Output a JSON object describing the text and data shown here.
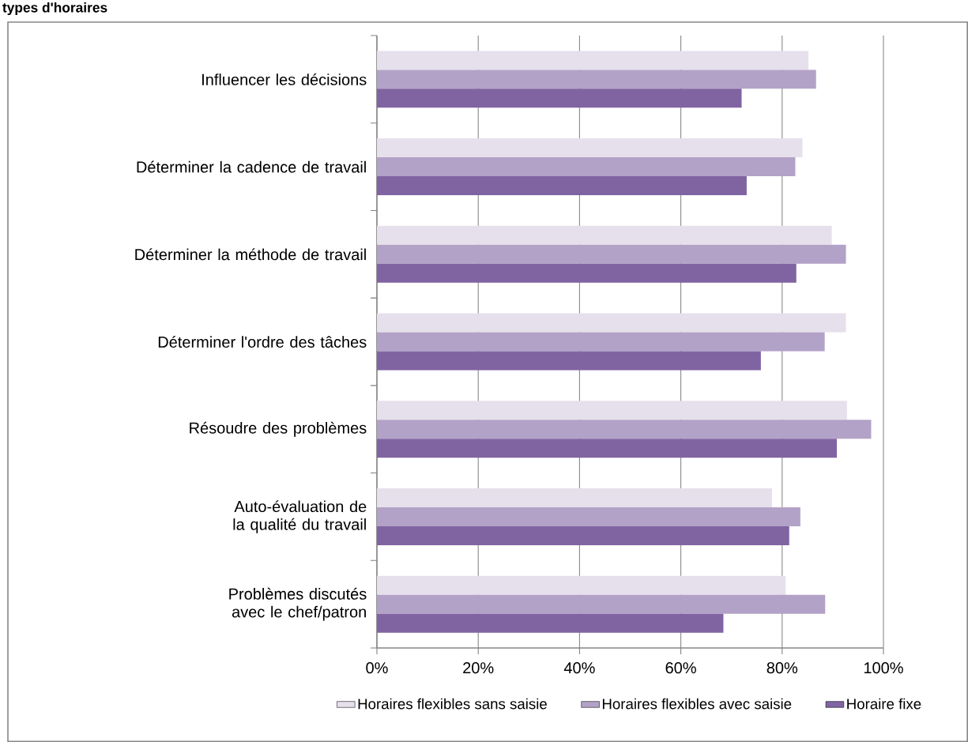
{
  "chart_data": {
    "type": "bar",
    "orientation": "horizontal",
    "title": "types d'horaires",
    "categories": [
      "Influencer les décisions",
      "Déterminer la cadence de travail",
      "Déterminer la méthode de travail",
      "Déterminer l'ordre des tâches",
      "Résoudre des problèmes",
      "Auto-évaluation de la qualité du travail",
      "Problèmes discutés avec le chef/patron"
    ],
    "series": [
      {
        "name": "Horaires flexibles sans saisie",
        "color": "#e6e0ec",
        "values": [
          85.2,
          84.0,
          89.8,
          92.6,
          92.8,
          78.0,
          80.7
        ]
      },
      {
        "name": "Horaires flexibles avec saisie",
        "color": "#b3a2c7",
        "values": [
          86.7,
          82.6,
          92.6,
          88.4,
          97.6,
          83.6,
          88.5
        ]
      },
      {
        "name": "Horaire fixe",
        "color": "#8064a2",
        "values": [
          72.0,
          73.0,
          82.8,
          75.8,
          90.8,
          81.4,
          68.4
        ]
      }
    ],
    "xlim": [
      0,
      100
    ],
    "xticks": [
      {
        "value": 0,
        "label": "0%"
      },
      {
        "value": 20,
        "label": "20%"
      },
      {
        "value": 40,
        "label": "40%"
      },
      {
        "value": 60,
        "label": "60%"
      },
      {
        "value": 80,
        "label": "80%"
      },
      {
        "value": 100,
        "label": "100%"
      }
    ],
    "grid": "x",
    "legend": "bottom"
  }
}
